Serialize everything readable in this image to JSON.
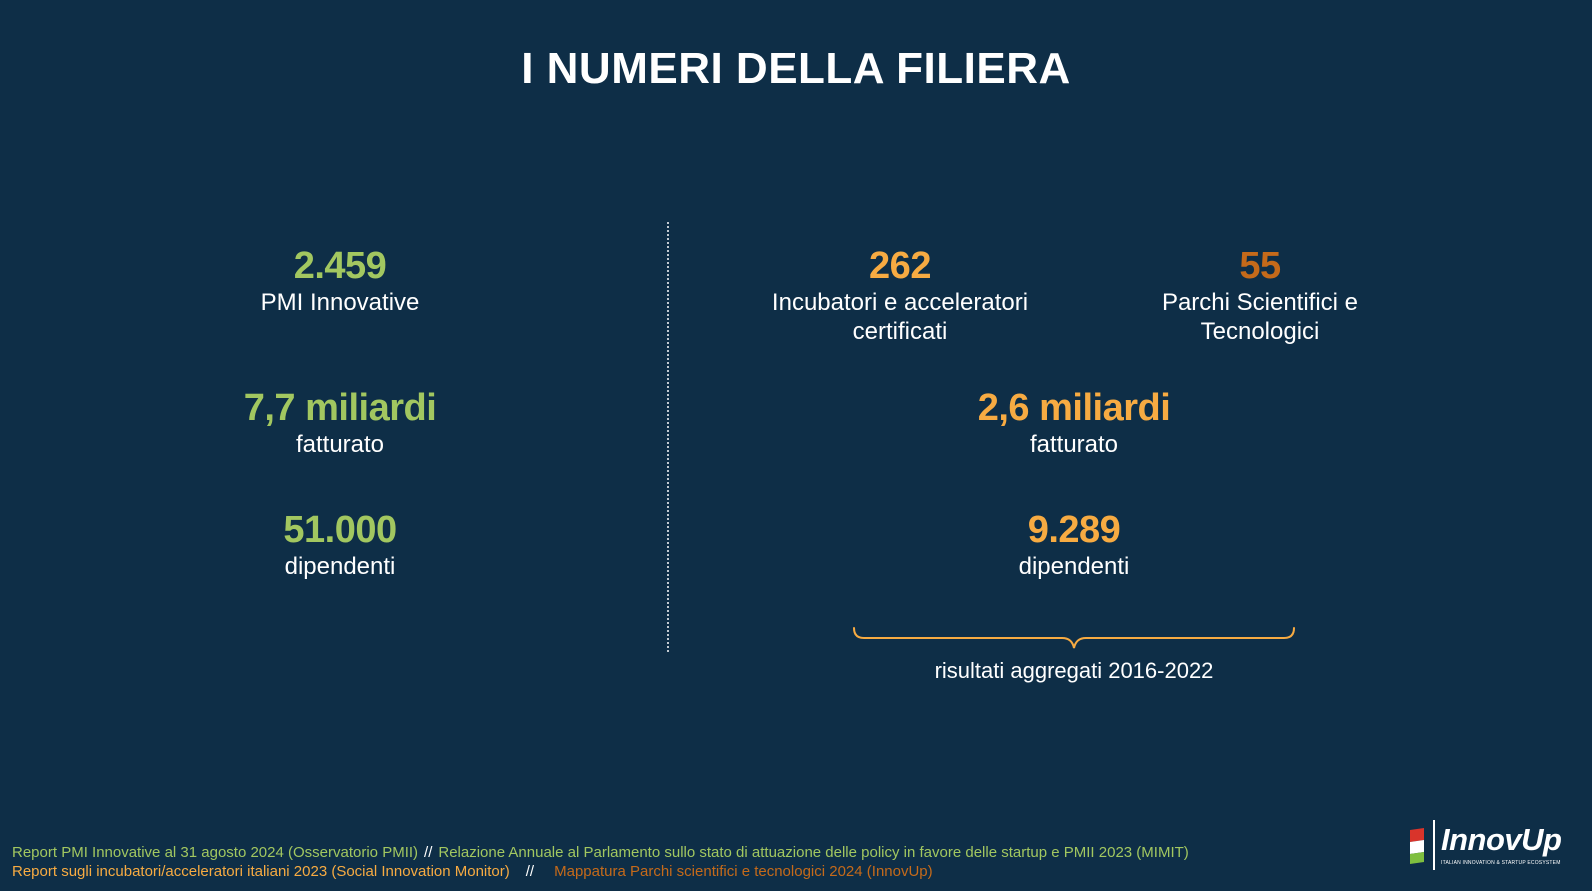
{
  "title": "I NUMERI DELLA FILIERA",
  "left": {
    "stats": [
      {
        "value": "2.459",
        "label": "PMI Innovative"
      },
      {
        "value": "7,7 miliardi",
        "label": "fatturato"
      },
      {
        "value": "51.000",
        "label": "dipendenti"
      }
    ],
    "color": "#a2c760"
  },
  "right": {
    "incubators": {
      "value": "262",
      "label_line1": "Incubatori e acceleratori",
      "label_line2": "certificati"
    },
    "parks": {
      "value": "55",
      "label_line1": "Parchi Scientifici e",
      "label_line2": "Tecnologici"
    },
    "revenue": {
      "value": "2,6 miliardi",
      "label": "fatturato"
    },
    "employees": {
      "value": "9.289",
      "label": "dipendenti"
    },
    "brace_caption": "risultati aggregati 2016-2022",
    "colors": {
      "orange": "#f7ab42",
      "brown": "#c56a1a"
    }
  },
  "footer": {
    "line1": {
      "source1": "Report PMI Innovative al 31 agosto 2024 (Osservatorio PMII)",
      "separator": "//",
      "source2": "Relazione Annuale al Parlamento sullo stato di attuazione delle policy in favore delle startup e PMII 2023  (MIMIT)"
    },
    "line2": {
      "source3": "Report sugli incubatori/acceleratori italiani 2023 (Social Innovation Monitor)",
      "separator": "//",
      "source4": "Mappatura Parchi scientifici e tecnologici 2024 (InnovUp)"
    }
  },
  "logo": {
    "name": "InnovUp",
    "tagline": "ITALIAN INNOVATION & STARTUP ECOSYSTEM",
    "icon": "italian-flag-icon"
  },
  "background_color": "#0e2e47"
}
